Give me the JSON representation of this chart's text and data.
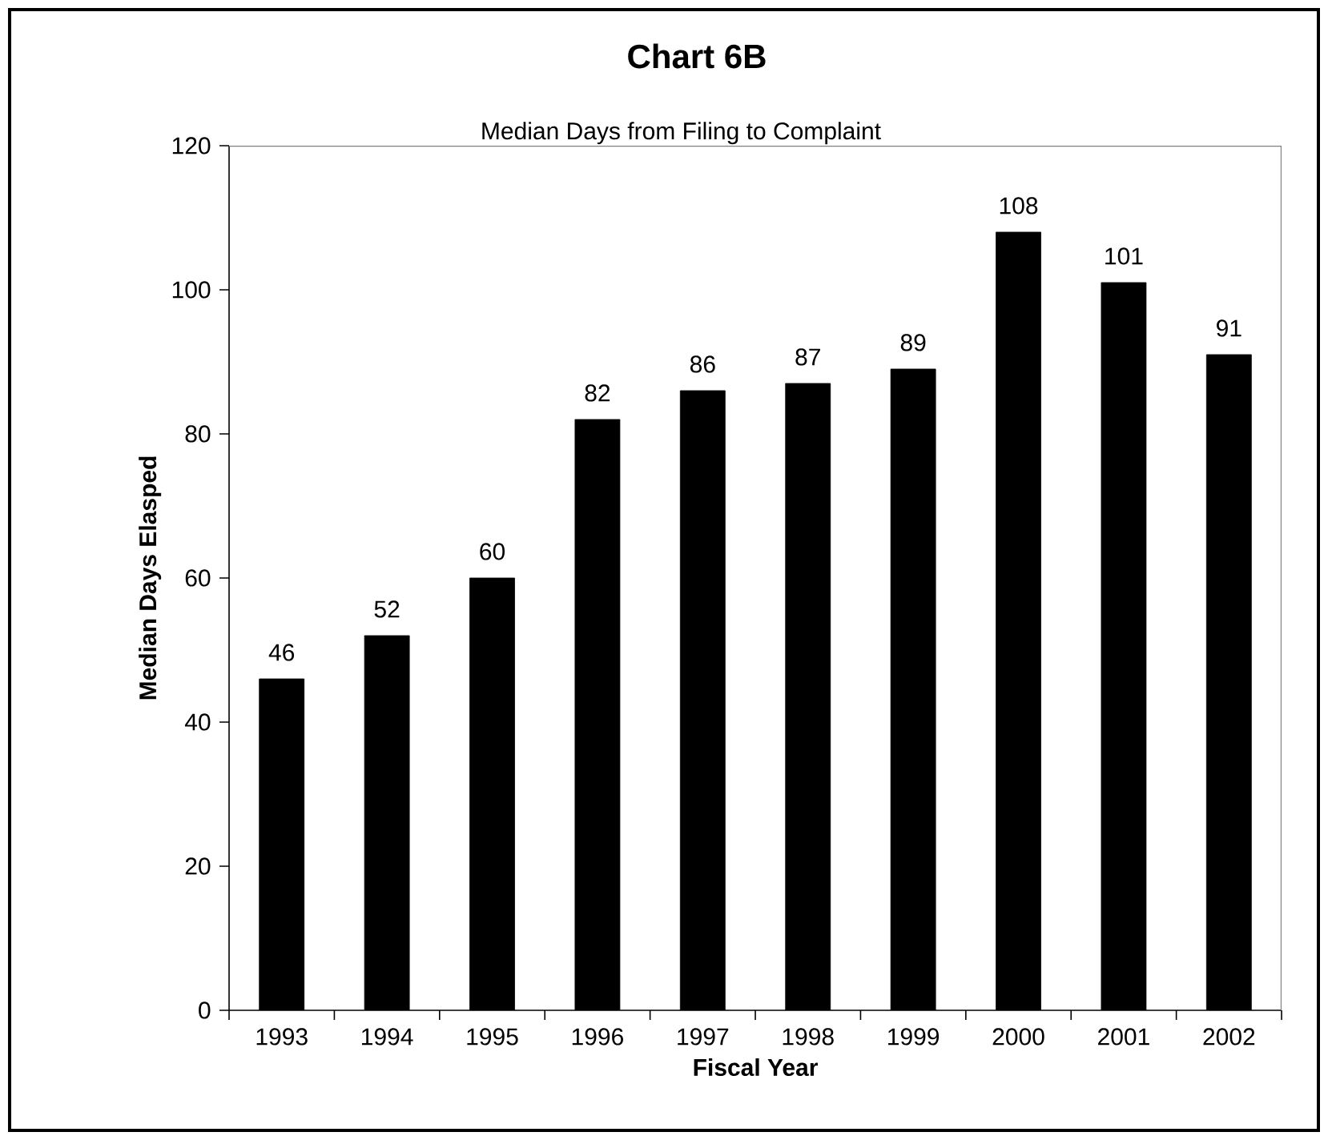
{
  "chart_data": {
    "type": "bar",
    "title": "Chart 6B",
    "subtitle": "Median Days from Filing to Complaint",
    "xlabel": "Fiscal Year",
    "ylabel": "Median Days Elasped",
    "categories": [
      "1993",
      "1994",
      "1995",
      "1996",
      "1997",
      "1998",
      "1999",
      "2000",
      "2001",
      "2002"
    ],
    "values": [
      46,
      52,
      60,
      82,
      86,
      87,
      89,
      108,
      101,
      91
    ],
    "color": "#000000",
    "ylim": [
      0,
      120
    ],
    "yticks": [
      0,
      20,
      40,
      60,
      80,
      100,
      120
    ],
    "data_labels": true,
    "grid": false
  }
}
